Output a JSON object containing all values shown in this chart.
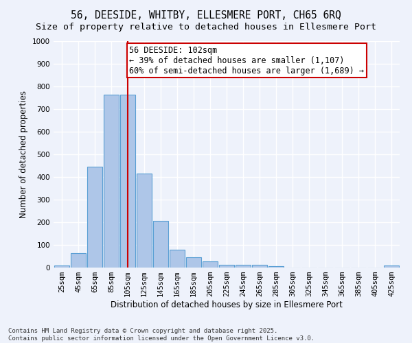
{
  "title_line1": "56, DEESIDE, WHITBY, ELLESMERE PORT, CH65 6RQ",
  "title_line2": "Size of property relative to detached houses in Ellesmere Port",
  "xlabel": "Distribution of detached houses by size in Ellesmere Port",
  "ylabel": "Number of detached properties",
  "bar_color": "#aec6e8",
  "bar_edge_color": "#5a9fd4",
  "background_color": "#eef2fb",
  "grid_color": "#ffffff",
  "categories": [
    "25sqm",
    "45sqm",
    "65sqm",
    "85sqm",
    "105sqm",
    "125sqm",
    "145sqm",
    "165sqm",
    "185sqm",
    "205sqm",
    "225sqm",
    "245sqm",
    "265sqm",
    "285sqm",
    "305sqm",
    "325sqm",
    "345sqm",
    "365sqm",
    "385sqm",
    "405sqm",
    "425sqm"
  ],
  "values": [
    10,
    65,
    445,
    765,
    765,
    415,
    205,
    80,
    45,
    28,
    12,
    12,
    12,
    5,
    0,
    0,
    0,
    0,
    0,
    0,
    8
  ],
  "vline_index": 4,
  "vline_color": "#cc0000",
  "annotation_text": "56 DEESIDE: 102sqm\n← 39% of detached houses are smaller (1,107)\n60% of semi-detached houses are larger (1,689) →",
  "ylim": [
    0,
    1000
  ],
  "yticks": [
    0,
    100,
    200,
    300,
    400,
    500,
    600,
    700,
    800,
    900,
    1000
  ],
  "footer_text": "Contains HM Land Registry data © Crown copyright and database right 2025.\nContains public sector information licensed under the Open Government Licence v3.0.",
  "title_fontsize": 10.5,
  "subtitle_fontsize": 9.5,
  "axis_label_fontsize": 8.5,
  "tick_fontsize": 7.5,
  "annotation_fontsize": 8.5,
  "footer_fontsize": 6.5
}
